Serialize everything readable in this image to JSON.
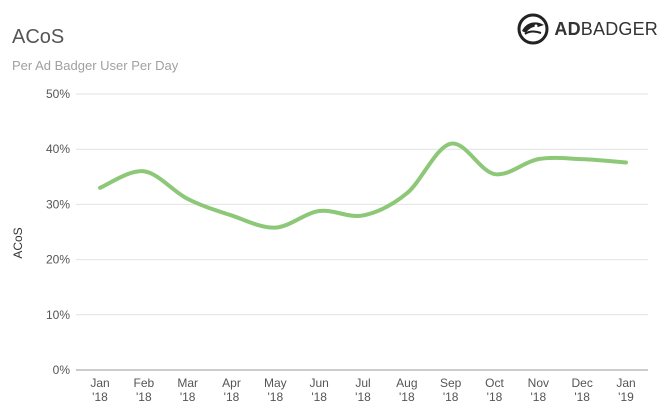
{
  "header": {
    "title": "ACoS",
    "subtitle": "Per Ad Badger User Per Day"
  },
  "logo": {
    "bold": "AD",
    "light": "BADGER",
    "icon": "badger-head-icon"
  },
  "chart_data": {
    "type": "line",
    "title": "ACoS",
    "subtitle": "Per Ad Badger User Per Day",
    "xlabel": "",
    "ylabel": "ACoS",
    "ylim": [
      0,
      50
    ],
    "yticks": [
      "0%",
      "10%",
      "20%",
      "30%",
      "40%",
      "50%"
    ],
    "categories": [
      [
        "Jan",
        "'18"
      ],
      [
        "Feb",
        "'18"
      ],
      [
        "Mar",
        "'18"
      ],
      [
        "Apr",
        "'18"
      ],
      [
        "May",
        "'18"
      ],
      [
        "Jun",
        "'18"
      ],
      [
        "Jul",
        "'18"
      ],
      [
        "Aug",
        "'18"
      ],
      [
        "Sep",
        "'18"
      ],
      [
        "Oct",
        "'18"
      ],
      [
        "Nov",
        "'18"
      ],
      [
        "Dec",
        "'18"
      ],
      [
        "Jan",
        "'19"
      ]
    ],
    "series": [
      {
        "values": [
          33,
          36,
          31,
          28,
          25.8,
          28.8,
          28,
          32,
          41,
          35.5,
          38.2,
          38.2,
          37.6
        ]
      }
    ],
    "grid": true,
    "legend": "none",
    "color": "#8dc878"
  }
}
